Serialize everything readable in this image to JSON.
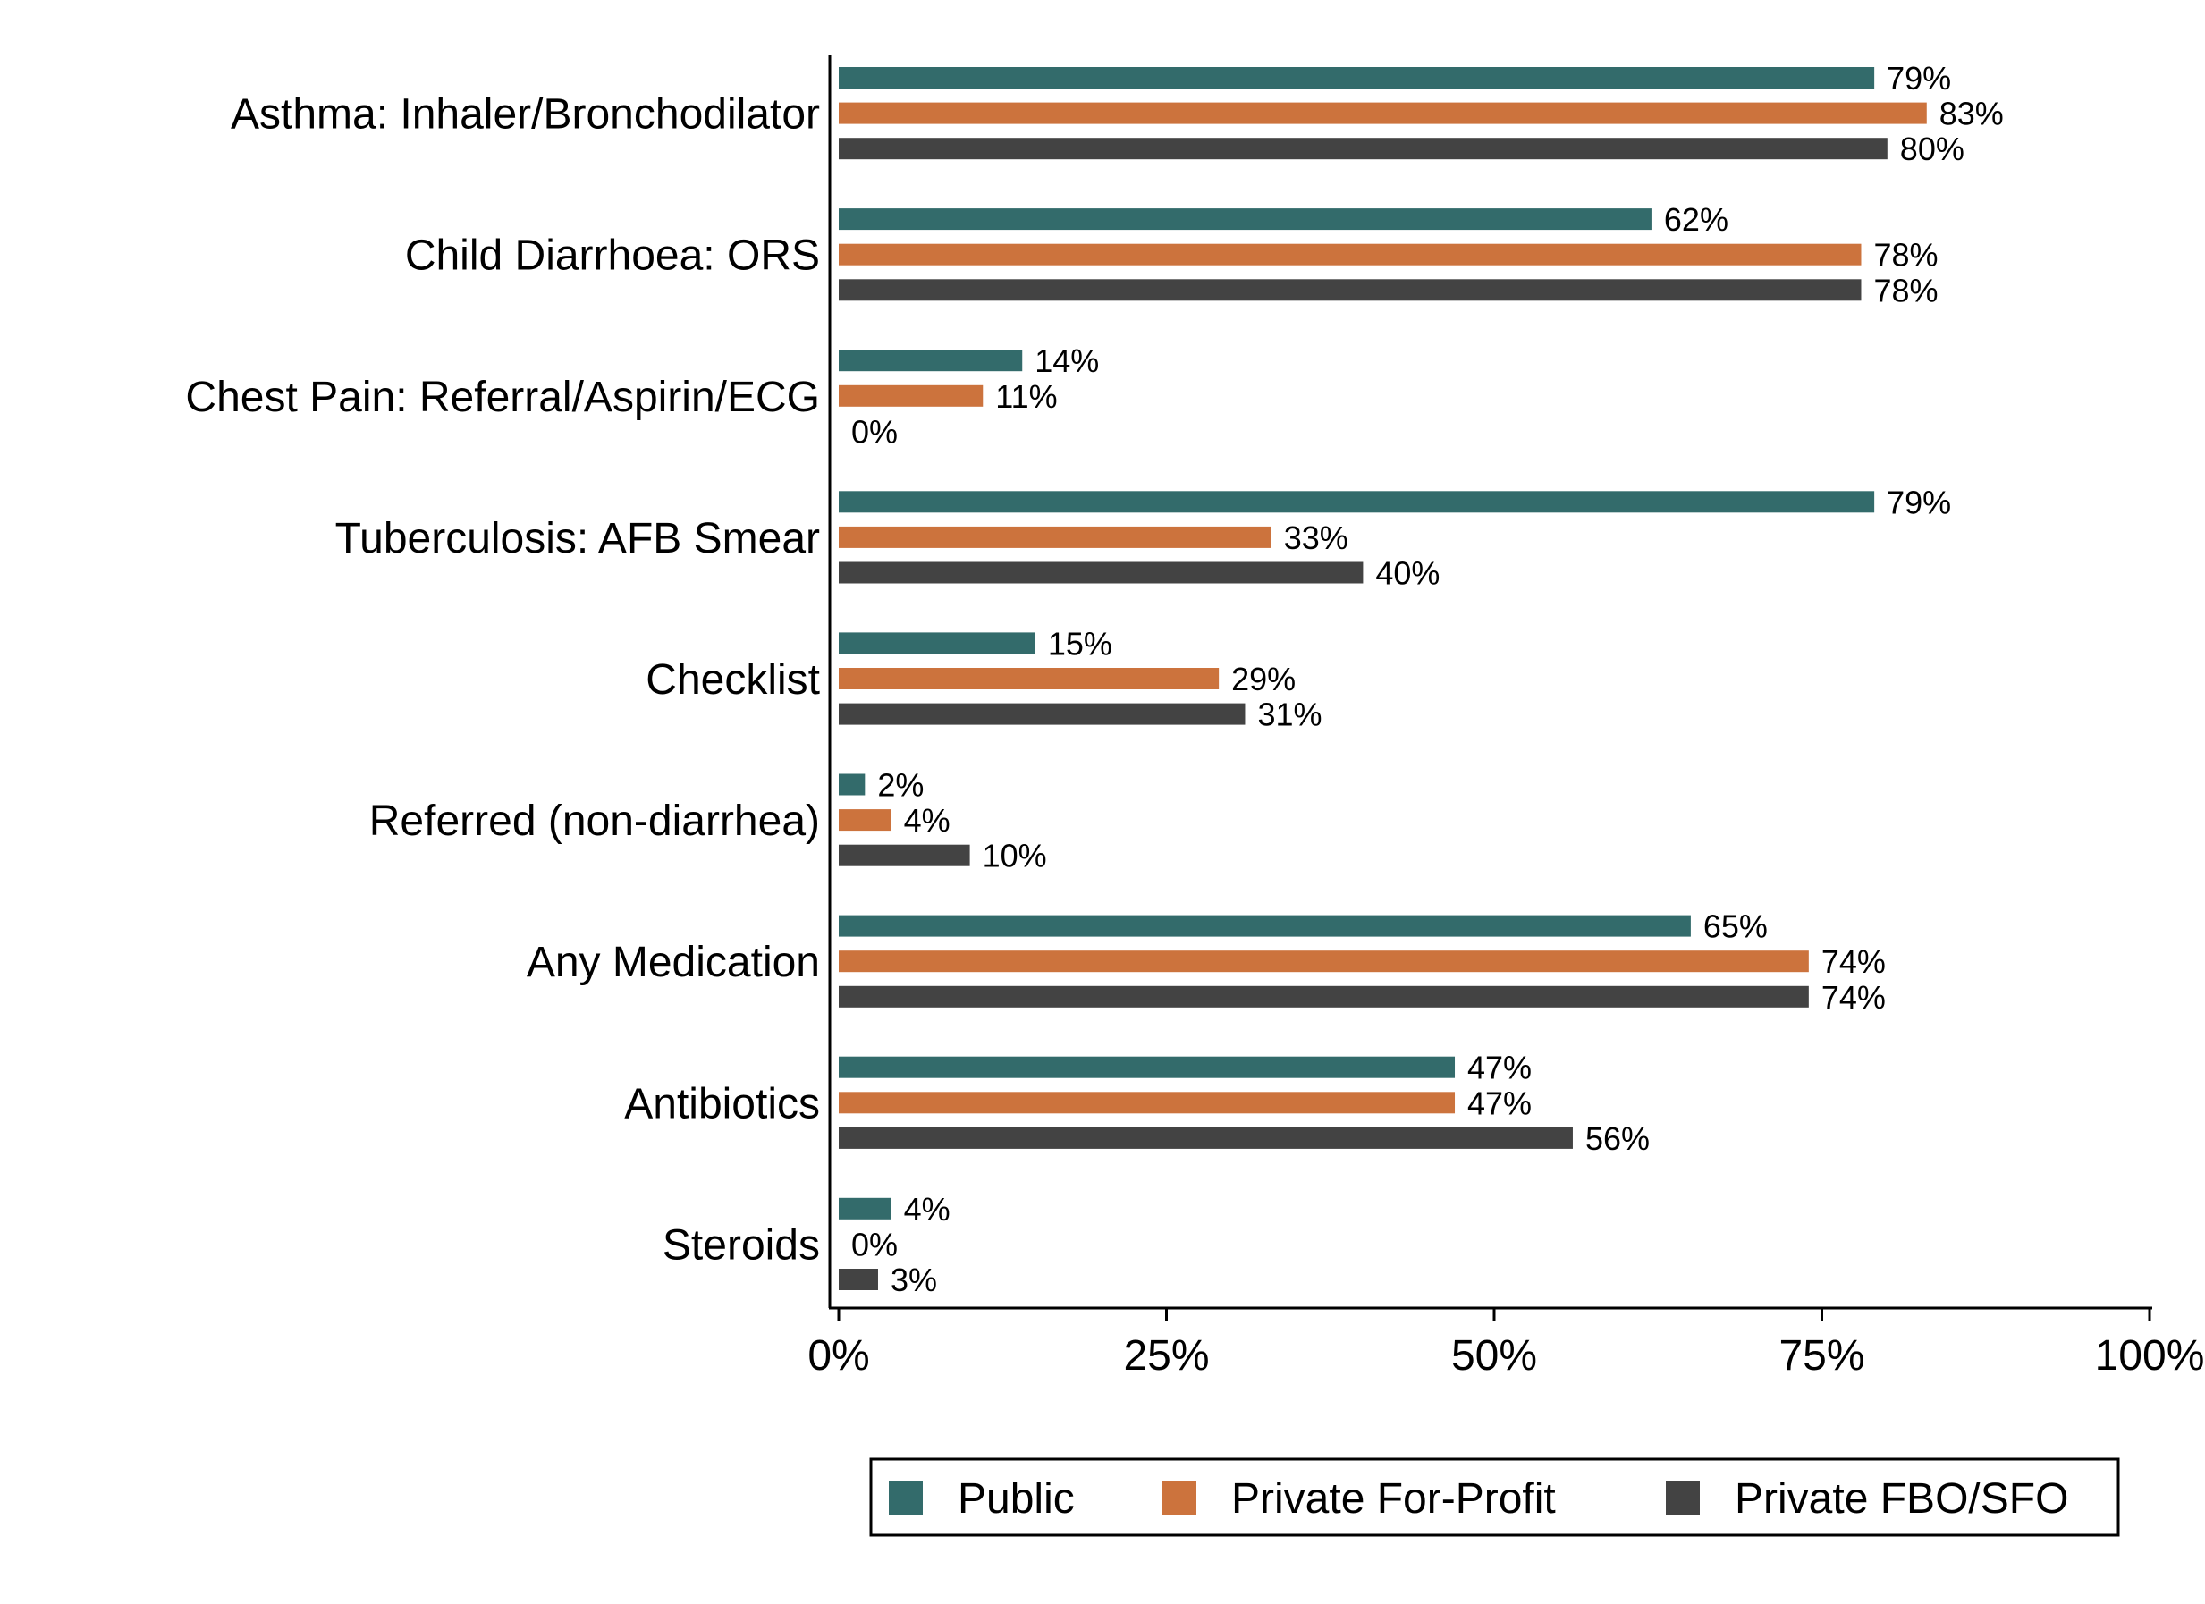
{
  "chart_data": {
    "type": "bar",
    "orientation": "horizontal",
    "categories": [
      "Asthma: Inhaler/Bronchodilator",
      "Child Diarrhoea: ORS",
      "Chest Pain: Referral/Aspirin/ECG",
      "Tuberculosis: AFB Smear",
      "Checklist",
      "Referred (non-diarrhea)",
      "Any Medication",
      "Antibiotics",
      "Steroids"
    ],
    "series": [
      {
        "name": "Public",
        "color": "#336b6b",
        "values": [
          79,
          62,
          14,
          79,
          15,
          2,
          65,
          47,
          4
        ],
        "labels": [
          "79%",
          "62%",
          "14%",
          "79%",
          "15%",
          "2%",
          "65%",
          "47%",
          "4%"
        ]
      },
      {
        "name": "Private For-Profit",
        "color": "#cc733d",
        "values": [
          83,
          78,
          11,
          33,
          29,
          4,
          74,
          47,
          0
        ],
        "labels": [
          "83%",
          "78%",
          "11%",
          "33%",
          "29%",
          "4%",
          "74%",
          "47%",
          "0%"
        ]
      },
      {
        "name": "Private FBO/SFO",
        "color": "#434343",
        "values": [
          80,
          78,
          0,
          40,
          31,
          10,
          74,
          56,
          3
        ],
        "labels": [
          "80%",
          "78%",
          "0%",
          "40%",
          "31%",
          "10%",
          "74%",
          "56%",
          "3%"
        ]
      }
    ],
    "xlim": [
      0,
      100
    ],
    "xticks": [
      0,
      25,
      50,
      75,
      100
    ],
    "xtick_labels": [
      "0%",
      "25%",
      "50%",
      "75%",
      "100%"
    ],
    "title": "",
    "xlabel": "",
    "ylabel": "",
    "grid": false,
    "legend_position": "bottom"
  }
}
